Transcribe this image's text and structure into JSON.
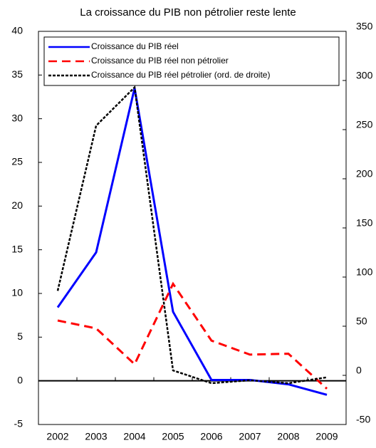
{
  "chart_data": {
    "type": "line",
    "title": "La croissance du PIB non pétrolier reste lente",
    "x": [
      "2002",
      "2003",
      "2004",
      "2005",
      "2006",
      "2007",
      "2008",
      "2009"
    ],
    "series": [
      {
        "name": "Croissance du PIB réel",
        "color": "#0000ff",
        "dash": "solid",
        "values": [
          8.4,
          14.7,
          33.5,
          7.9,
          0.1,
          0.1,
          -0.4,
          -1.6
        ]
      },
      {
        "name": "Croissance du PIB réel non pétrolier",
        "color": "#ff0000",
        "dash": "dashed",
        "values": [
          6.9,
          6.0,
          1.9,
          11.1,
          4.6,
          3.0,
          3.1,
          -0.9
        ]
      },
      {
        "name": "Croissance du PIB réel pétrolier (ord. de droite)",
        "color": "#000000",
        "dash": "dotted",
        "axis": "y2",
        "values": [
          86,
          254,
          293,
          5,
          -8,
          -5,
          -8,
          -2
        ]
      }
    ],
    "ylim": [
      -5,
      40
    ],
    "yticks": [
      -5,
      0,
      5,
      10,
      15,
      20,
      25,
      30,
      35,
      40
    ],
    "y2lim": [
      -50,
      350
    ],
    "y2ticks": [
      -50,
      0,
      50,
      100,
      150,
      200,
      250,
      300,
      350
    ]
  }
}
